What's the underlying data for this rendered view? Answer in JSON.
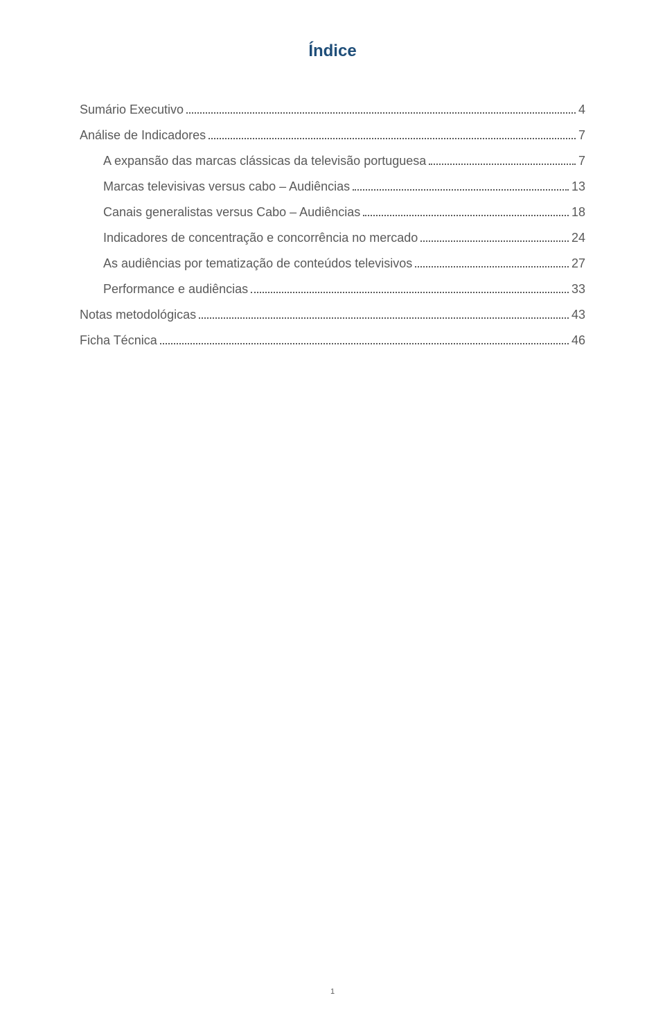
{
  "title": {
    "text": "Índice",
    "color": "#1f4e79",
    "fontsize": 24
  },
  "toc": {
    "textColor": "#595959",
    "dotColor": "#595959",
    "fontsize": 18,
    "lineSpacing": 16,
    "entries": [
      {
        "label": "Sumário Executivo",
        "page": "4",
        "level": 0
      },
      {
        "label": "Análise de Indicadores",
        "page": "7",
        "level": 0
      },
      {
        "label": "A expansão das marcas clássicas da televisão portuguesa",
        "page": "7",
        "level": 1
      },
      {
        "label": "Marcas televisivas versus cabo – Audiências",
        "page": "13",
        "level": 1
      },
      {
        "label": "Canais generalistas versus Cabo – Audiências",
        "page": "18",
        "level": 1
      },
      {
        "label": "Indicadores de concentração e concorrência no mercado",
        "page": "24",
        "level": 1
      },
      {
        "label": "As audiências por tematização de conteúdos televisivos",
        "page": "27",
        "level": 1
      },
      {
        "label": "Performance e audiências",
        "page": "33",
        "level": 1
      },
      {
        "label": "Notas metodológicas",
        "page": "43",
        "level": 0
      },
      {
        "label": "Ficha Técnica",
        "page": "46",
        "level": 0
      }
    ]
  },
  "footer": {
    "pageNumber": "1",
    "color": "#595959",
    "fontsize": 11
  },
  "background": "#ffffff"
}
